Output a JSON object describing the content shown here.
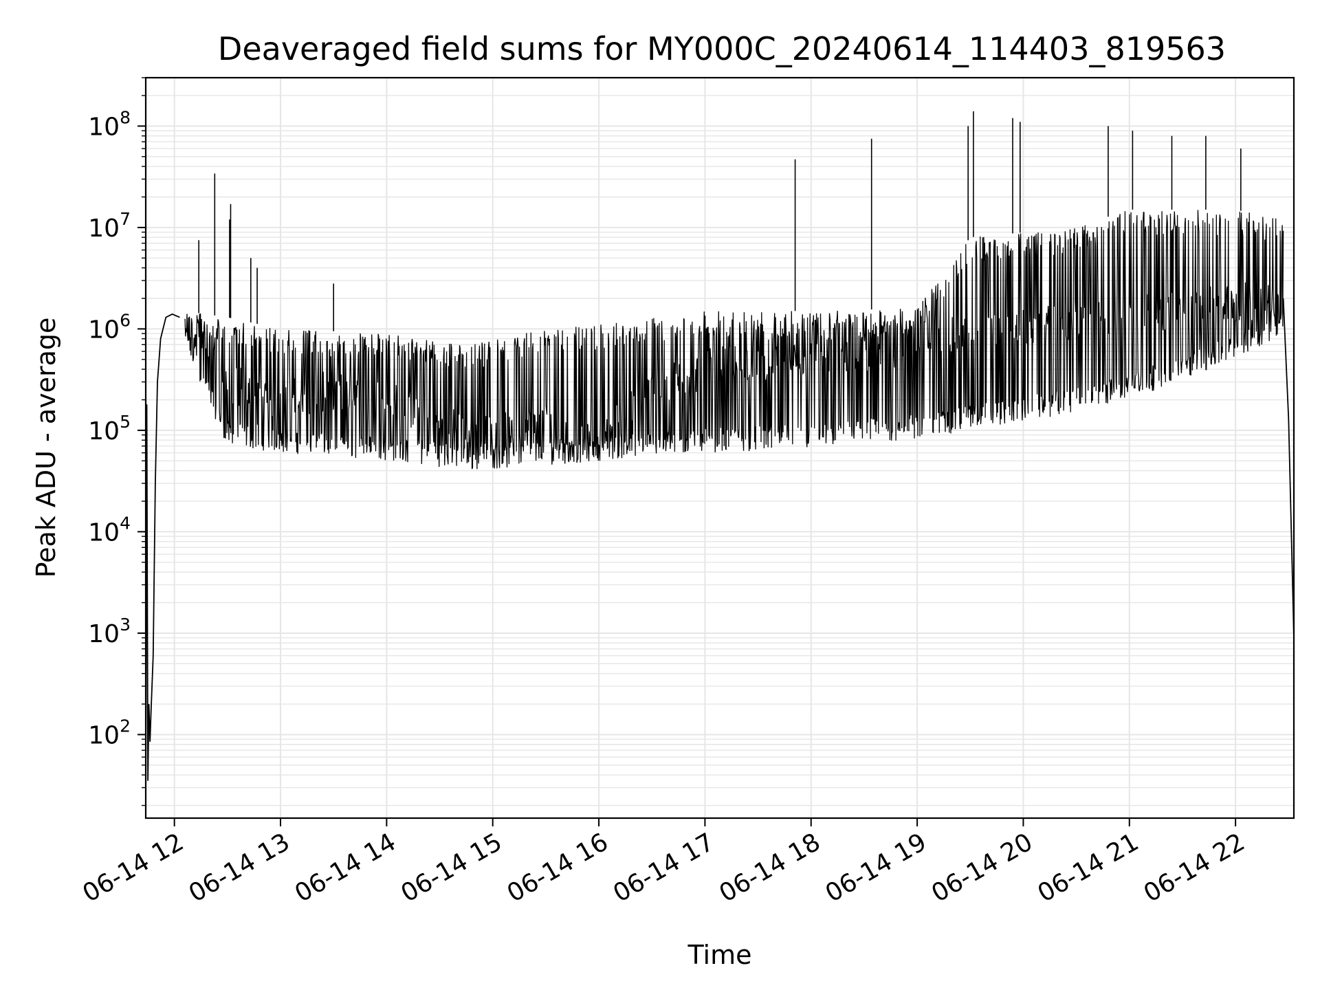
{
  "chart_data": {
    "type": "line",
    "title": "Deaveraged field sums for MY000C_20240614_114403_819563",
    "xlabel": "Time",
    "ylabel": "Peak ADU - average",
    "yscale": "log",
    "grid": true,
    "line_color": "#000000",
    "grid_color": "#e6e6e6",
    "x_ticks": [
      "06-14 12",
      "06-14 13",
      "06-14 14",
      "06-14 15",
      "06-14 16",
      "06-14 17",
      "06-14 18",
      "06-14 19",
      "06-14 20",
      "06-14 21",
      "06-14 22"
    ],
    "x_tick_hours": [
      12,
      13,
      14,
      15,
      16,
      17,
      18,
      19,
      20,
      21,
      22
    ],
    "x_range_hours": [
      11.73,
      22.55
    ],
    "y_ticks": [
      {
        "base": "10",
        "exp": "2",
        "value": 100
      },
      {
        "base": "10",
        "exp": "3",
        "value": 1000
      },
      {
        "base": "10",
        "exp": "4",
        "value": 10000
      },
      {
        "base": "10",
        "exp": "5",
        "value": 100000
      },
      {
        "base": "10",
        "exp": "6",
        "value": 1000000
      },
      {
        "base": "10",
        "exp": "7",
        "value": 10000000
      },
      {
        "base": "10",
        "exp": "8",
        "value": 100000000
      }
    ],
    "y_range": [
      15,
      300000000
    ],
    "series": [
      {
        "points": [
          {
            "hour": 11.73,
            "value": 15
          },
          {
            "hour": 11.74,
            "value": 180000
          },
          {
            "hour": 11.75,
            "value": 35
          },
          {
            "hour": 11.76,
            "value": 200
          },
          {
            "hour": 11.77,
            "value": 85
          },
          {
            "hour": 11.78,
            "value": 170
          },
          {
            "hour": 11.8,
            "value": 600
          },
          {
            "hour": 11.82,
            "value": 30000
          },
          {
            "hour": 11.84,
            "value": 300000
          },
          {
            "hour": 11.87,
            "value": 800000
          },
          {
            "hour": 11.92,
            "value": 1300000
          },
          {
            "hour": 11.98,
            "value": 1400000
          },
          {
            "hour": 12.05,
            "value": 1300000
          },
          {
            "hour": 12.2,
            "value": 800000
          },
          {
            "hour": 12.5,
            "value": 300000
          },
          {
            "hour": 12.8,
            "value": 220000
          },
          {
            "hour": 13.0,
            "value": 200000
          },
          {
            "hour": 13.5,
            "value": 250000
          },
          {
            "hour": 14.0,
            "value": 200000
          },
          {
            "hour": 14.3,
            "value": 150000
          },
          {
            "hour": 14.7,
            "value": 100000
          },
          {
            "hour": 15.0,
            "value": 90000
          },
          {
            "hour": 15.5,
            "value": 120000
          },
          {
            "hour": 15.8,
            "value": 70000
          },
          {
            "hour": 16.0,
            "value": 80000
          },
          {
            "hour": 16.5,
            "value": 250000
          },
          {
            "hour": 17.0,
            "value": 400000
          },
          {
            "hour": 17.5,
            "value": 500000
          },
          {
            "hour": 18.0,
            "value": 500000
          },
          {
            "hour": 18.5,
            "value": 600000
          },
          {
            "hour": 19.0,
            "value": 700000
          },
          {
            "hour": 19.5,
            "value": 900000
          },
          {
            "hour": 20.0,
            "value": 1000000
          },
          {
            "hour": 20.5,
            "value": 1200000
          },
          {
            "hour": 21.0,
            "value": 1500000
          },
          {
            "hour": 21.5,
            "value": 1500000
          },
          {
            "hour": 22.0,
            "value": 1800000
          },
          {
            "hour": 22.45,
            "value": 2000000
          },
          {
            "hour": 22.5,
            "value": 130000
          },
          {
            "hour": 22.55,
            "value": 900
          }
        ],
        "spikes": [
          {
            "hour": 12.38,
            "value": 34000000
          },
          {
            "hour": 12.23,
            "value": 7500000
          },
          {
            "hour": 12.53,
            "value": 17000000
          },
          {
            "hour": 12.52,
            "value": 12000000
          },
          {
            "hour": 12.72,
            "value": 5000000
          },
          {
            "hour": 12.78,
            "value": 4000000
          },
          {
            "hour": 13.5,
            "value": 2800000
          },
          {
            "hour": 17.85,
            "value": 47000000
          },
          {
            "hour": 18.57,
            "value": 75000000
          },
          {
            "hour": 19.48,
            "value": 100000000
          },
          {
            "hour": 19.53,
            "value": 140000000
          },
          {
            "hour": 19.9,
            "value": 120000000
          },
          {
            "hour": 19.97,
            "value": 110000000
          },
          {
            "hour": 20.8,
            "value": 100000000
          },
          {
            "hour": 21.03,
            "value": 90000000
          },
          {
            "hour": 21.4,
            "value": 80000000
          },
          {
            "hour": 21.72,
            "value": 80000000
          },
          {
            "hour": 22.05,
            "value": 60000000
          }
        ],
        "band_low": [
          {
            "hour": 12.1,
            "value": 600000
          },
          {
            "hour": 12.5,
            "value": 70000
          },
          {
            "hour": 13.0,
            "value": 60000
          },
          {
            "hour": 14.0,
            "value": 50000
          },
          {
            "hour": 14.8,
            "value": 40000
          },
          {
            "hour": 15.5,
            "value": 45000
          },
          {
            "hour": 16.0,
            "value": 50000
          },
          {
            "hour": 17.0,
            "value": 60000
          },
          {
            "hour": 18.0,
            "value": 65000
          },
          {
            "hour": 19.0,
            "value": 80000
          },
          {
            "hour": 19.5,
            "value": 100000
          },
          {
            "hour": 20.5,
            "value": 150000
          },
          {
            "hour": 21.0,
            "value": 200000
          },
          {
            "hour": 22.0,
            "value": 500000
          },
          {
            "hour": 22.45,
            "value": 900000
          }
        ],
        "band_high": [
          {
            "hour": 12.1,
            "value": 1500000
          },
          {
            "hour": 12.5,
            "value": 1300000
          },
          {
            "hour": 13.0,
            "value": 1000000
          },
          {
            "hour": 14.0,
            "value": 900000
          },
          {
            "hour": 14.8,
            "value": 700000
          },
          {
            "hour": 15.5,
            "value": 1000000
          },
          {
            "hour": 16.0,
            "value": 1100000
          },
          {
            "hour": 17.0,
            "value": 1500000
          },
          {
            "hour": 18.0,
            "value": 1500000
          },
          {
            "hour": 19.0,
            "value": 1600000
          },
          {
            "hour": 19.5,
            "value": 8000000
          },
          {
            "hour": 20.5,
            "value": 10000000
          },
          {
            "hour": 21.0,
            "value": 15000000
          },
          {
            "hour": 22.0,
            "value": 15000000
          },
          {
            "hour": 22.45,
            "value": 12000000
          }
        ]
      }
    ]
  }
}
